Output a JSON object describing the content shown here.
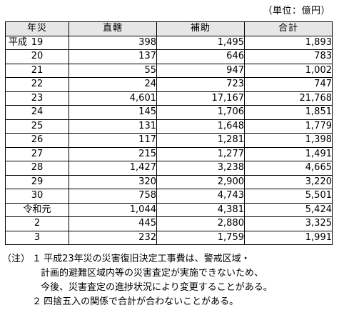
{
  "unit_label": "（単位：億円）",
  "table": {
    "headers": [
      "年災",
      "直轄",
      "補助",
      "合計"
    ],
    "rows": [
      {
        "era": "平成",
        "year": "19",
        "direct": "398",
        "subsidy": "1,495",
        "total": "1,893"
      },
      {
        "era": "",
        "year": "20",
        "direct": "137",
        "subsidy": "646",
        "total": "783"
      },
      {
        "era": "",
        "year": "21",
        "direct": "55",
        "subsidy": "947",
        "total": "1,002"
      },
      {
        "era": "",
        "year": "22",
        "direct": "24",
        "subsidy": "723",
        "total": "747"
      },
      {
        "era": "",
        "year": "23",
        "direct": "4,601",
        "subsidy": "17,167",
        "total": "21,768"
      },
      {
        "era": "",
        "year": "24",
        "direct": "145",
        "subsidy": "1,706",
        "total": "1,851"
      },
      {
        "era": "",
        "year": "25",
        "direct": "131",
        "subsidy": "1,648",
        "total": "1,779"
      },
      {
        "era": "",
        "year": "26",
        "direct": "117",
        "subsidy": "1,281",
        "total": "1,398"
      },
      {
        "era": "",
        "year": "27",
        "direct": "215",
        "subsidy": "1,277",
        "total": "1,491"
      },
      {
        "era": "",
        "year": "28",
        "direct": "1,427",
        "subsidy": "3,238",
        "total": "4,665"
      },
      {
        "era": "",
        "year": "29",
        "direct": "320",
        "subsidy": "2,900",
        "total": "3,220"
      },
      {
        "era": "",
        "year": "30",
        "direct": "758",
        "subsidy": "4,743",
        "total": "5,501"
      },
      {
        "era": "",
        "year": "令和元",
        "direct": "1,044",
        "subsidy": "4,381",
        "total": "5,424"
      },
      {
        "era": "",
        "year": "2",
        "direct": "445",
        "subsidy": "2,880",
        "total": "3,325"
      },
      {
        "era": "",
        "year": "3",
        "direct": "232",
        "subsidy": "1,759",
        "total": "1,991"
      }
    ]
  },
  "notes": {
    "prefix": "（注）",
    "items": [
      {
        "number": "１",
        "lines": [
          "平成23年災の災害復旧決定工事費は、警戒区域・",
          "計画的避難区域内等の災害査定が実施できないため、",
          "今後、災害査定の進捗状況により変更することがある。"
        ]
      },
      {
        "number": "２",
        "lines": [
          "四捨五入の関係で合計が合わないことがある。"
        ]
      }
    ]
  }
}
